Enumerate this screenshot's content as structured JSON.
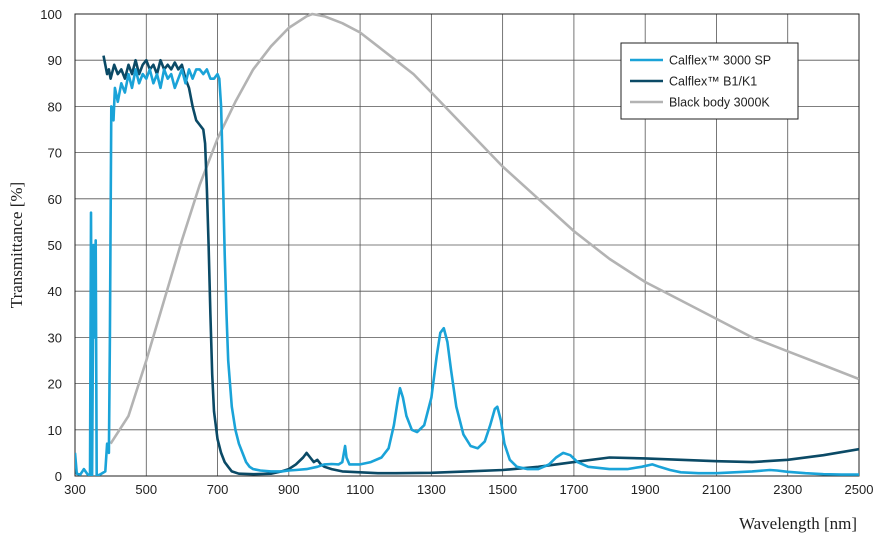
{
  "chart_data": {
    "type": "line",
    "xlabel": "Wavelength [nm]",
    "ylabel": "Transmittance [%]",
    "xlim": [
      300,
      2500
    ],
    "ylim": [
      0,
      100
    ],
    "x_ticks": [
      300,
      500,
      700,
      900,
      1100,
      1300,
      1500,
      1700,
      1900,
      2100,
      2300,
      2500
    ],
    "y_ticks": [
      0,
      10,
      20,
      30,
      40,
      50,
      60,
      70,
      80,
      90,
      100
    ],
    "grid": true,
    "legend_position": "top-right",
    "series": [
      {
        "name": "Calflex™ 3000 SP",
        "color": "#1aa3d8",
        "points": [
          [
            300,
            5
          ],
          [
            305,
            0.5
          ],
          [
            315,
            0.3
          ],
          [
            325,
            1.5
          ],
          [
            335,
            0.4
          ],
          [
            342,
            0
          ],
          [
            345,
            57
          ],
          [
            348,
            0
          ],
          [
            352,
            50
          ],
          [
            355,
            30
          ],
          [
            358,
            51
          ],
          [
            361,
            0
          ],
          [
            370,
            0.3
          ],
          [
            385,
            1
          ],
          [
            390,
            7
          ],
          [
            395,
            5
          ],
          [
            398,
            30
          ],
          [
            402,
            80
          ],
          [
            408,
            77
          ],
          [
            412,
            84
          ],
          [
            420,
            81
          ],
          [
            430,
            85
          ],
          [
            440,
            83
          ],
          [
            450,
            87
          ],
          [
            460,
            84
          ],
          [
            470,
            88
          ],
          [
            480,
            85
          ],
          [
            490,
            87
          ],
          [
            500,
            86
          ],
          [
            510,
            88
          ],
          [
            520,
            85
          ],
          [
            530,
            87
          ],
          [
            540,
            84
          ],
          [
            550,
            88
          ],
          [
            560,
            86
          ],
          [
            570,
            87
          ],
          [
            580,
            84
          ],
          [
            590,
            86
          ],
          [
            600,
            88
          ],
          [
            610,
            85
          ],
          [
            620,
            88
          ],
          [
            630,
            86
          ],
          [
            640,
            88
          ],
          [
            650,
            88
          ],
          [
            660,
            87
          ],
          [
            670,
            88
          ],
          [
            680,
            86
          ],
          [
            690,
            86
          ],
          [
            700,
            87
          ],
          [
            705,
            86
          ],
          [
            710,
            80
          ],
          [
            715,
            65
          ],
          [
            720,
            48
          ],
          [
            725,
            35
          ],
          [
            730,
            25
          ],
          [
            740,
            15
          ],
          [
            750,
            10
          ],
          [
            760,
            7
          ],
          [
            770,
            5
          ],
          [
            780,
            3
          ],
          [
            790,
            2
          ],
          [
            800,
            1.5
          ],
          [
            820,
            1.2
          ],
          [
            850,
            1
          ],
          [
            880,
            1
          ],
          [
            900,
            1.2
          ],
          [
            920,
            1.3
          ],
          [
            950,
            1.5
          ],
          [
            980,
            2
          ],
          [
            1000,
            2.5
          ],
          [
            1020,
            2.6
          ],
          [
            1040,
            2.5
          ],
          [
            1050,
            3
          ],
          [
            1058,
            6.5
          ],
          [
            1062,
            4
          ],
          [
            1070,
            2.5
          ],
          [
            1100,
            2.5
          ],
          [
            1130,
            3
          ],
          [
            1160,
            4
          ],
          [
            1180,
            6
          ],
          [
            1195,
            11
          ],
          [
            1205,
            16
          ],
          [
            1212,
            19
          ],
          [
            1220,
            17
          ],
          [
            1230,
            13
          ],
          [
            1245,
            10
          ],
          [
            1260,
            9.5
          ],
          [
            1280,
            11
          ],
          [
            1300,
            17
          ],
          [
            1315,
            26
          ],
          [
            1325,
            31
          ],
          [
            1335,
            32
          ],
          [
            1345,
            29
          ],
          [
            1355,
            23
          ],
          [
            1370,
            15
          ],
          [
            1390,
            9
          ],
          [
            1410,
            6.5
          ],
          [
            1430,
            6
          ],
          [
            1450,
            7.5
          ],
          [
            1465,
            11
          ],
          [
            1478,
            14.5
          ],
          [
            1485,
            15
          ],
          [
            1495,
            12
          ],
          [
            1505,
            7
          ],
          [
            1520,
            3.5
          ],
          [
            1540,
            2
          ],
          [
            1570,
            1.5
          ],
          [
            1600,
            1.5
          ],
          [
            1630,
            2.5
          ],
          [
            1650,
            4
          ],
          [
            1670,
            5
          ],
          [
            1690,
            4.5
          ],
          [
            1710,
            3
          ],
          [
            1740,
            2
          ],
          [
            1800,
            1.5
          ],
          [
            1850,
            1.5
          ],
          [
            1890,
            2
          ],
          [
            1920,
            2.5
          ],
          [
            1940,
            2
          ],
          [
            1970,
            1.3
          ],
          [
            2000,
            0.8
          ],
          [
            2050,
            0.6
          ],
          [
            2100,
            0.6
          ],
          [
            2150,
            0.8
          ],
          [
            2200,
            1
          ],
          [
            2250,
            1.3
          ],
          [
            2270,
            1.2
          ],
          [
            2300,
            0.9
          ],
          [
            2350,
            0.6
          ],
          [
            2400,
            0.4
          ],
          [
            2450,
            0.3
          ],
          [
            2500,
            0.3
          ]
        ]
      },
      {
        "name": "Calflex™ B1/K1",
        "color": "#0b4a66",
        "points": [
          [
            380,
            91
          ],
          [
            385,
            89
          ],
          [
            390,
            87
          ],
          [
            395,
            88
          ],
          [
            400,
            86
          ],
          [
            410,
            89
          ],
          [
            420,
            87
          ],
          [
            430,
            88
          ],
          [
            440,
            86
          ],
          [
            450,
            89
          ],
          [
            460,
            87
          ],
          [
            470,
            90
          ],
          [
            480,
            87
          ],
          [
            490,
            89
          ],
          [
            500,
            90
          ],
          [
            510,
            88
          ],
          [
            520,
            89
          ],
          [
            530,
            87
          ],
          [
            540,
            90
          ],
          [
            550,
            88
          ],
          [
            560,
            89
          ],
          [
            570,
            88
          ],
          [
            580,
            89.5
          ],
          [
            590,
            88
          ],
          [
            600,
            89
          ],
          [
            610,
            86
          ],
          [
            620,
            84
          ],
          [
            630,
            80
          ],
          [
            640,
            77
          ],
          [
            650,
            76
          ],
          [
            660,
            75
          ],
          [
            665,
            72
          ],
          [
            670,
            62
          ],
          [
            675,
            50
          ],
          [
            680,
            35
          ],
          [
            685,
            22
          ],
          [
            690,
            14
          ],
          [
            700,
            8
          ],
          [
            710,
            5
          ],
          [
            720,
            3
          ],
          [
            730,
            2
          ],
          [
            740,
            1
          ],
          [
            760,
            0.5
          ],
          [
            800,
            0.4
          ],
          [
            850,
            0.5
          ],
          [
            880,
            1
          ],
          [
            900,
            1.5
          ],
          [
            920,
            2.5
          ],
          [
            940,
            4
          ],
          [
            950,
            5
          ],
          [
            960,
            4
          ],
          [
            970,
            3
          ],
          [
            980,
            3.5
          ],
          [
            990,
            2.5
          ],
          [
            1000,
            2
          ],
          [
            1020,
            1.5
          ],
          [
            1050,
            1
          ],
          [
            1100,
            0.8
          ],
          [
            1150,
            0.6
          ],
          [
            1200,
            0.6
          ],
          [
            1300,
            0.7
          ],
          [
            1400,
            1
          ],
          [
            1500,
            1.3
          ],
          [
            1600,
            2
          ],
          [
            1700,
            3
          ],
          [
            1800,
            4
          ],
          [
            1900,
            3.8
          ],
          [
            2000,
            3.5
          ],
          [
            2100,
            3.2
          ],
          [
            2200,
            3
          ],
          [
            2300,
            3.5
          ],
          [
            2400,
            4.5
          ],
          [
            2500,
            5.8
          ]
        ]
      },
      {
        "name": "Black body 3000K",
        "color": "#b3b3b3",
        "points": [
          [
            400,
            7
          ],
          [
            450,
            13
          ],
          [
            500,
            25
          ],
          [
            550,
            38
          ],
          [
            600,
            51
          ],
          [
            650,
            63
          ],
          [
            700,
            73
          ],
          [
            750,
            81
          ],
          [
            800,
            88
          ],
          [
            850,
            93
          ],
          [
            900,
            97
          ],
          [
            950,
            99.5
          ],
          [
            966,
            100
          ],
          [
            1000,
            99.5
          ],
          [
            1050,
            98
          ],
          [
            1100,
            96
          ],
          [
            1150,
            93
          ],
          [
            1200,
            90
          ],
          [
            1250,
            87
          ],
          [
            1300,
            83
          ],
          [
            1400,
            75
          ],
          [
            1500,
            67
          ],
          [
            1600,
            60
          ],
          [
            1700,
            53
          ],
          [
            1800,
            47
          ],
          [
            1900,
            42
          ],
          [
            2000,
            38
          ],
          [
            2100,
            34
          ],
          [
            2200,
            30
          ],
          [
            2300,
            27
          ],
          [
            2400,
            24
          ],
          [
            2500,
            21
          ]
        ]
      }
    ]
  }
}
